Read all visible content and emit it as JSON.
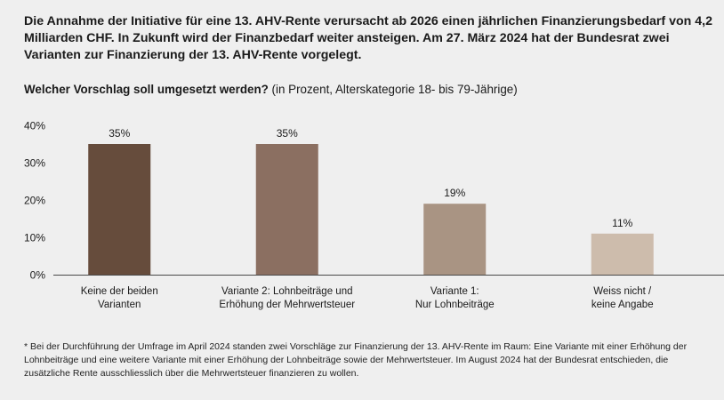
{
  "intro": "Die Annahme der Initiative für eine 13. AHV-Rente verursacht ab 2026 einen jährlichen Finanzierungsbedarf von 4,2 Milliarden CHF. In Zukunft wird der Finanzbedarf weiter ansteigen. Am 27. März 2024 hat der Bundesrat zwei Varianten zur Finanzierung der 13. AHV-Rente vorgelegt.",
  "question": {
    "main": "Welcher Vorschlag soll umgesetzt werden?",
    "sub": " (in Prozent, Alterskategorie 18- bis 79-Jährige)"
  },
  "chart_data": {
    "type": "bar",
    "title": "Welcher Vorschlag soll umgesetzt werden?",
    "subtitle": "(in Prozent, Alterskategorie 18- bis 79-Jährige)",
    "xlabel": "",
    "ylabel": "",
    "ylim": [
      0,
      40
    ],
    "yticks": [
      0,
      10,
      20,
      30,
      40
    ],
    "ytick_labels": [
      "0%",
      "10%",
      "20%",
      "30%",
      "40%"
    ],
    "grid": false,
    "categories": [
      [
        "Keine der beiden",
        "Varianten"
      ],
      [
        "Variante 2: Lohnbeiträge und",
        "Erhöhung der Mehrwertsteuer"
      ],
      [
        "Variante 1:",
        "Nur Lohnbeiträge"
      ],
      [
        "Weiss nicht /",
        "keine Angabe"
      ]
    ],
    "values": [
      35,
      35,
      19,
      11
    ],
    "value_labels": [
      "35%",
      "35%",
      "19%",
      "11%"
    ],
    "colors": [
      "#664c3c",
      "#8b6f61",
      "#a99483",
      "#cdbcac"
    ]
  },
  "footnote": "* Bei der Durchführung der Umfrage im April 2024 standen zwei Vorschläge zur Finanzierung der 13. AHV-Rente im Raum: Eine Variante mit einer Erhöhung der Lohnbeiträge und eine weitere Variante mit einer Erhöhung der Lohnbeiträge sowie der Mehrwertsteuer. Im August 2024 hat der Bundesrat entschieden, die zusätzliche Rente ausschliesslich über die Mehrwertsteuer finanzieren zu wollen."
}
